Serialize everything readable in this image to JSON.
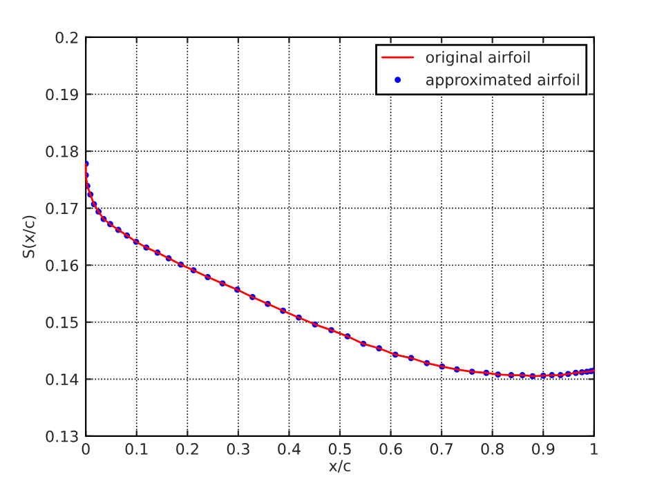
{
  "chart_data": {
    "type": "line",
    "xlabel": "x/c",
    "ylabel": "S(x/c)",
    "x": [
      0,
      0,
      0.003,
      0.009,
      0.016,
      0.025,
      0.035,
      0.048,
      0.064,
      0.081,
      0.099,
      0.119,
      0.141,
      0.163,
      0.187,
      0.212,
      0.24,
      0.269,
      0.298,
      0.328,
      0.358,
      0.388,
      0.419,
      0.451,
      0.483,
      0.515,
      0.546,
      0.577,
      0.609,
      0.64,
      0.671,
      0.701,
      0.73,
      0.76,
      0.788,
      0.811,
      0.837,
      0.859,
      0.879,
      0.9,
      0.917,
      0.934,
      0.949,
      0.964,
      0.976,
      0.986,
      0.994,
      1.0
    ],
    "series": [
      {
        "name": "original airfoil",
        "color": "#ff0000",
        "marker": "none",
        "values": [
          0.1778,
          0.1758,
          0.1739,
          0.1724,
          0.1707,
          0.1694,
          0.1681,
          0.1672,
          0.1662,
          0.1652,
          0.1641,
          0.1631,
          0.1622,
          0.1612,
          0.1601,
          0.1591,
          0.1579,
          0.1568,
          0.1557,
          0.1544,
          0.1532,
          0.152,
          0.1508,
          0.1496,
          0.1486,
          0.1475,
          0.1462,
          0.1454,
          0.1443,
          0.1437,
          0.1428,
          0.1422,
          0.1417,
          0.1413,
          0.1411,
          0.1408,
          0.1407,
          0.1407,
          0.1405,
          0.1406,
          0.1407,
          0.1407,
          0.1409,
          0.1411,
          0.1412,
          0.1413,
          0.1414,
          0.1415
        ]
      },
      {
        "name": "approximated airfoil",
        "type": "scatter",
        "color": "#0000ff",
        "marker": "circle",
        "values": [
          0.1778,
          0.1758,
          0.1739,
          0.1724,
          0.1707,
          0.1694,
          0.1681,
          0.1672,
          0.1662,
          0.1652,
          0.1641,
          0.1631,
          0.1622,
          0.1612,
          0.1601,
          0.1591,
          0.1579,
          0.1568,
          0.1557,
          0.1544,
          0.1532,
          0.152,
          0.1508,
          0.1496,
          0.1486,
          0.1475,
          0.1462,
          0.1454,
          0.1443,
          0.1437,
          0.1428,
          0.1422,
          0.1417,
          0.1413,
          0.1411,
          0.1408,
          0.1407,
          0.1407,
          0.1405,
          0.1406,
          0.1407,
          0.1407,
          0.1409,
          0.1411,
          0.1412,
          0.1413,
          0.1414,
          0.1415
        ]
      }
    ],
    "xlim": [
      0,
      1
    ],
    "xticks": [
      0,
      0.1,
      0.2,
      0.3,
      0.4,
      0.5,
      0.6,
      0.7,
      0.8,
      0.9,
      1
    ],
    "ylim": [
      0.13,
      0.2
    ],
    "yticks": [
      0.13,
      0.14,
      0.15,
      0.16,
      0.17,
      0.18,
      0.19,
      0.2
    ],
    "grid": true,
    "legend": "top right",
    "line_style": "solid"
  }
}
